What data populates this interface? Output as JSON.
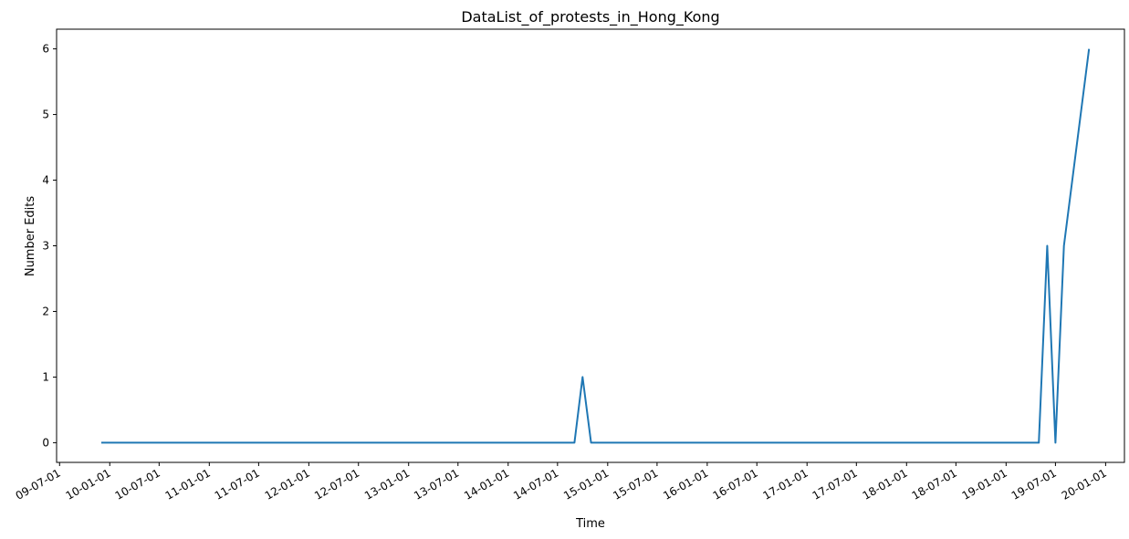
{
  "chart_data": {
    "type": "line",
    "title": "DataList_of_protests_in_Hong_Kong",
    "xlabel": "Time",
    "ylabel": "Number Edits",
    "ylim": [
      -0.3,
      6.3
    ],
    "xlim": [
      "2009-06-20",
      "2020-03-10"
    ],
    "x_ticks": [
      "09-07-01",
      "10-01-01",
      "10-07-01",
      "11-01-01",
      "11-07-01",
      "12-01-01",
      "12-07-01",
      "13-01-01",
      "13-07-01",
      "14-01-01",
      "14-07-01",
      "15-01-01",
      "15-07-01",
      "16-01-01",
      "16-07-01",
      "17-01-01",
      "17-07-01",
      "18-01-01",
      "18-07-01",
      "19-01-01",
      "19-07-01",
      "20-01-01"
    ],
    "y_ticks": [
      0,
      1,
      2,
      3,
      4,
      5,
      6
    ],
    "grid": false,
    "legend": "none",
    "color": "#1f77b4",
    "series": [
      {
        "x": [
          "2009-12-01",
          "2014-09-01",
          "2014-10-01",
          "2014-11-01",
          "2019-05-01",
          "2019-06-01",
          "2019-07-01",
          "2019-08-01",
          "2019-11-01"
        ],
        "values": [
          0,
          0,
          1,
          0,
          0,
          3,
          0,
          3,
          6
        ]
      }
    ]
  }
}
